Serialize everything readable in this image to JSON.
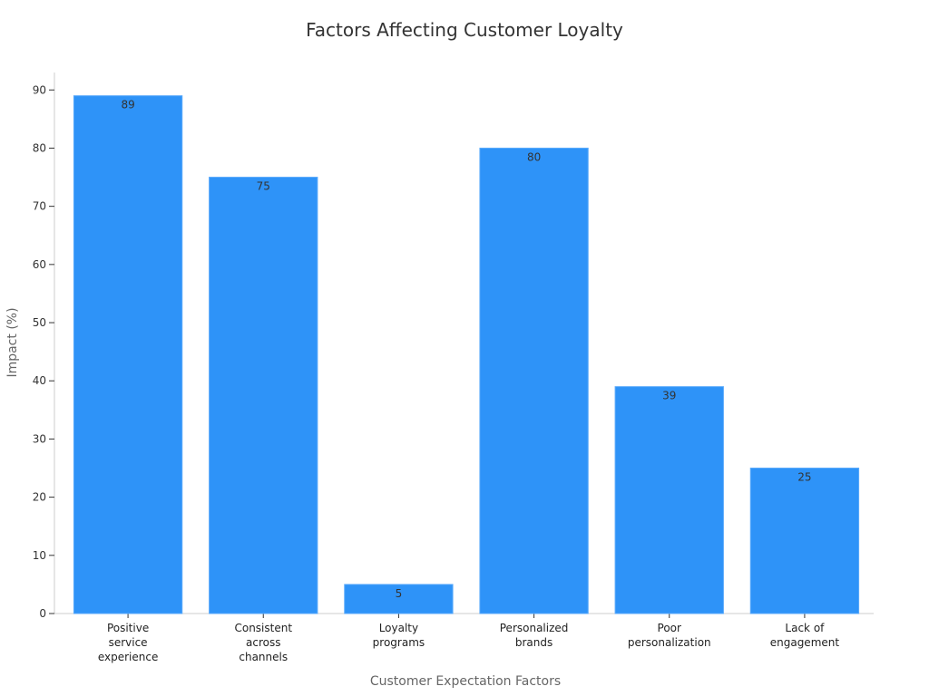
{
  "chart_data": {
    "type": "bar",
    "title": "Factors Affecting Customer Loyalty",
    "xlabel": "Customer Expectation Factors",
    "ylabel": "Impact (%)",
    "categories": [
      [
        "Positive",
        "service",
        "experience"
      ],
      [
        "Consistent",
        "across",
        "channels"
      ],
      [
        "Loyalty",
        "programs"
      ],
      [
        "Personalized",
        "brands"
      ],
      [
        "Poor",
        "personalization"
      ],
      [
        "Lack of",
        "engagement"
      ]
    ],
    "values": [
      89,
      75,
      5,
      80,
      39,
      25
    ],
    "data_labels": [
      "89",
      "75",
      "5",
      "80",
      "39",
      "25"
    ],
    "ylim": [
      0,
      93
    ],
    "yticks": [
      0,
      10,
      20,
      30,
      40,
      50,
      60,
      70,
      80,
      90
    ],
    "ytick_labels": [
      "0",
      "10",
      "20",
      "30",
      "40",
      "50",
      "60",
      "70",
      "80",
      "90"
    ],
    "bar_color": "#2E93F8",
    "grid": false,
    "legend": "none"
  }
}
